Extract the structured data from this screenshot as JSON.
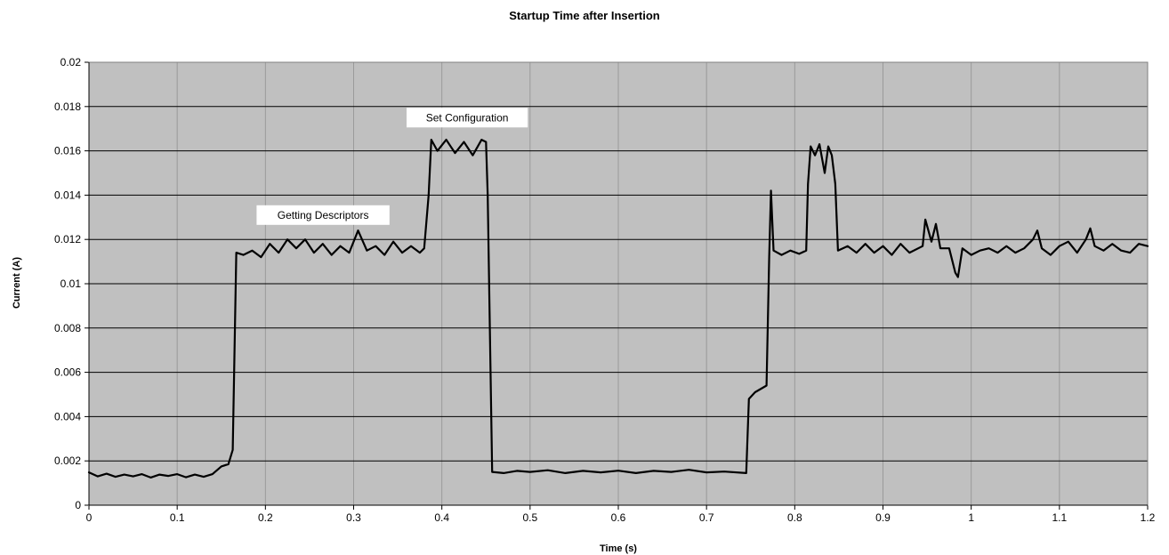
{
  "chart_data": {
    "type": "line",
    "title": "Startup Time after Insertion",
    "xlabel": "Time (s)",
    "ylabel": "Current (A)",
    "xlim": [
      0,
      1.2
    ],
    "ylim": [
      0,
      0.02
    ],
    "x_ticks": [
      "0",
      "0.1",
      "0.2",
      "0.3",
      "0.4",
      "0.5",
      "0.6",
      "0.7",
      "0.8",
      "0.9",
      "1",
      "1.1",
      "1.2"
    ],
    "y_ticks": [
      "0",
      "0.002",
      "0.004",
      "0.006",
      "0.008",
      "0.01",
      "0.012",
      "0.014",
      "0.016",
      "0.018",
      "0.02"
    ],
    "grid": true,
    "plot_background": "#c0c0c0",
    "line_color": "#000000",
    "annotations": [
      {
        "text": "Getting Descriptors",
        "x": 0.19,
        "y": 0.0131
      },
      {
        "text": "Set Configuration",
        "x": 0.36,
        "y": 0.0175
      }
    ],
    "series": [
      {
        "values": [
          [
            0.0,
            0.00148
          ],
          [
            0.01,
            0.0013
          ],
          [
            0.02,
            0.00142
          ],
          [
            0.03,
            0.00128
          ],
          [
            0.04,
            0.00138
          ],
          [
            0.05,
            0.0013
          ],
          [
            0.06,
            0.0014
          ],
          [
            0.07,
            0.00125
          ],
          [
            0.08,
            0.00138
          ],
          [
            0.09,
            0.00132
          ],
          [
            0.1,
            0.0014
          ],
          [
            0.11,
            0.00126
          ],
          [
            0.12,
            0.00138
          ],
          [
            0.13,
            0.00128
          ],
          [
            0.14,
            0.0014
          ],
          [
            0.15,
            0.00175
          ],
          [
            0.158,
            0.00185
          ],
          [
            0.163,
            0.0025
          ],
          [
            0.167,
            0.0114
          ],
          [
            0.175,
            0.0113
          ],
          [
            0.185,
            0.0115
          ],
          [
            0.195,
            0.0112
          ],
          [
            0.205,
            0.0118
          ],
          [
            0.215,
            0.0114
          ],
          [
            0.225,
            0.012
          ],
          [
            0.235,
            0.0116
          ],
          [
            0.245,
            0.012
          ],
          [
            0.255,
            0.0114
          ],
          [
            0.265,
            0.0118
          ],
          [
            0.275,
            0.0113
          ],
          [
            0.285,
            0.0117
          ],
          [
            0.295,
            0.0114
          ],
          [
            0.305,
            0.0124
          ],
          [
            0.315,
            0.0115
          ],
          [
            0.325,
            0.0117
          ],
          [
            0.335,
            0.0113
          ],
          [
            0.345,
            0.0119
          ],
          [
            0.355,
            0.0114
          ],
          [
            0.365,
            0.0117
          ],
          [
            0.375,
            0.0114
          ],
          [
            0.38,
            0.0116
          ],
          [
            0.385,
            0.014
          ],
          [
            0.388,
            0.0165
          ],
          [
            0.395,
            0.016
          ],
          [
            0.405,
            0.0165
          ],
          [
            0.415,
            0.0159
          ],
          [
            0.425,
            0.0164
          ],
          [
            0.435,
            0.0158
          ],
          [
            0.445,
            0.0165
          ],
          [
            0.45,
            0.0164
          ],
          [
            0.452,
            0.014
          ],
          [
            0.457,
            0.0015
          ],
          [
            0.47,
            0.00145
          ],
          [
            0.485,
            0.00155
          ],
          [
            0.5,
            0.0015
          ],
          [
            0.52,
            0.00158
          ],
          [
            0.54,
            0.00145
          ],
          [
            0.56,
            0.00155
          ],
          [
            0.58,
            0.00148
          ],
          [
            0.6,
            0.00156
          ],
          [
            0.62,
            0.00145
          ],
          [
            0.64,
            0.00155
          ],
          [
            0.66,
            0.0015
          ],
          [
            0.68,
            0.0016
          ],
          [
            0.7,
            0.00148
          ],
          [
            0.72,
            0.00152
          ],
          [
            0.745,
            0.00145
          ],
          [
            0.748,
            0.0048
          ],
          [
            0.755,
            0.0051
          ],
          [
            0.768,
            0.0054
          ],
          [
            0.771,
            0.0112
          ],
          [
            0.773,
            0.0142
          ],
          [
            0.776,
            0.0115
          ],
          [
            0.785,
            0.0113
          ],
          [
            0.795,
            0.0115
          ],
          [
            0.805,
            0.01135
          ],
          [
            0.813,
            0.0115
          ],
          [
            0.815,
            0.0145
          ],
          [
            0.818,
            0.0162
          ],
          [
            0.823,
            0.0158
          ],
          [
            0.828,
            0.0163
          ],
          [
            0.834,
            0.015
          ],
          [
            0.838,
            0.0162
          ],
          [
            0.842,
            0.0158
          ],
          [
            0.846,
            0.0145
          ],
          [
            0.849,
            0.0115
          ],
          [
            0.86,
            0.0117
          ],
          [
            0.87,
            0.0114
          ],
          [
            0.88,
            0.0118
          ],
          [
            0.89,
            0.0114
          ],
          [
            0.9,
            0.0117
          ],
          [
            0.91,
            0.0113
          ],
          [
            0.92,
            0.0118
          ],
          [
            0.93,
            0.0114
          ],
          [
            0.945,
            0.0117
          ],
          [
            0.948,
            0.0129
          ],
          [
            0.955,
            0.0119
          ],
          [
            0.96,
            0.0127
          ],
          [
            0.965,
            0.0116
          ],
          [
            0.975,
            0.0116
          ],
          [
            0.982,
            0.0105
          ],
          [
            0.985,
            0.0103
          ],
          [
            0.99,
            0.0116
          ],
          [
            1.0,
            0.0113
          ],
          [
            1.01,
            0.0115
          ],
          [
            1.02,
            0.0116
          ],
          [
            1.03,
            0.0114
          ],
          [
            1.04,
            0.0117
          ],
          [
            1.05,
            0.0114
          ],
          [
            1.06,
            0.0116
          ],
          [
            1.07,
            0.012
          ],
          [
            1.075,
            0.0124
          ],
          [
            1.08,
            0.0116
          ],
          [
            1.09,
            0.0113
          ],
          [
            1.1,
            0.0117
          ],
          [
            1.11,
            0.0119
          ],
          [
            1.12,
            0.0114
          ],
          [
            1.13,
            0.012
          ],
          [
            1.135,
            0.0125
          ],
          [
            1.14,
            0.0117
          ],
          [
            1.15,
            0.0115
          ],
          [
            1.16,
            0.0118
          ],
          [
            1.17,
            0.0115
          ],
          [
            1.18,
            0.0114
          ],
          [
            1.19,
            0.0118
          ],
          [
            1.2,
            0.0117
          ]
        ]
      }
    ]
  }
}
